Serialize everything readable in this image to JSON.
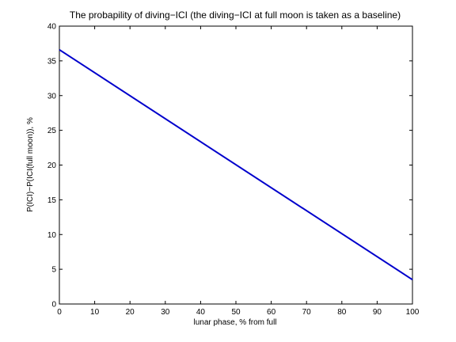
{
  "chart_data": {
    "type": "line",
    "title": "The probapility of diving−ICI (the diving−ICI at full moon is taken as a baseline)",
    "xlabel": "lunar phase, % from full",
    "ylabel": "P(ICI)−P(ICI(full moon)), %",
    "xlim": [
      0,
      100
    ],
    "ylim": [
      0,
      40
    ],
    "xticks": [
      0,
      10,
      20,
      30,
      40,
      50,
      60,
      70,
      80,
      90,
      100
    ],
    "yticks": [
      0,
      5,
      10,
      15,
      20,
      25,
      30,
      35,
      40
    ],
    "grid": false,
    "series": [
      {
        "x": [
          0,
          100
        ],
        "y": [
          36.6,
          3.5
        ],
        "color": "#0000cc"
      }
    ]
  }
}
